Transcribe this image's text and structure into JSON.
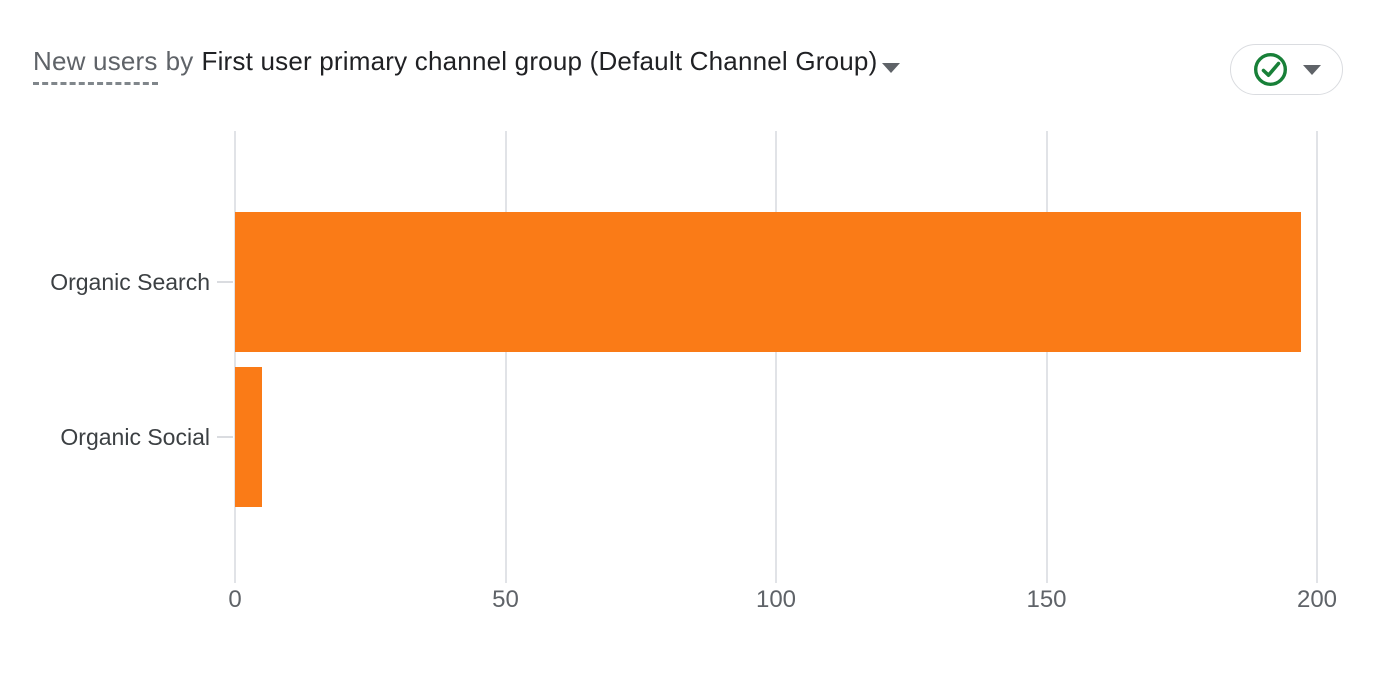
{
  "header": {
    "title": {
      "metric": "New users",
      "connector": "by",
      "dimension": "First user primary channel group (Default Channel Group)"
    },
    "icons": {
      "dimension_caret": "caret-down-icon",
      "status_check": "check-circle-icon",
      "status_caret": "chevron-down-icon"
    }
  },
  "colors": {
    "bar": "#FA7B17",
    "gridline": "#e1e3e7",
    "tick_label": "#5f6368",
    "category_label": "#3c4043",
    "title_muted": "#5f6368",
    "title_dark": "#202124",
    "check_green": "#188038",
    "pill_border": "#dadce0"
  },
  "chart_data": {
    "type": "bar",
    "orientation": "horizontal",
    "title": "New users by First user primary channel group (Default Channel Group)",
    "categories": [
      "Organic Search",
      "Organic Social"
    ],
    "values": [
      197,
      5
    ],
    "series_name": "New users",
    "xlabel": "",
    "ylabel": "",
    "xlim": [
      0,
      200
    ],
    "xticks": [
      0,
      50,
      100,
      150,
      200
    ],
    "bar_color": "#FA7B17",
    "grid": true,
    "legend": false
  }
}
